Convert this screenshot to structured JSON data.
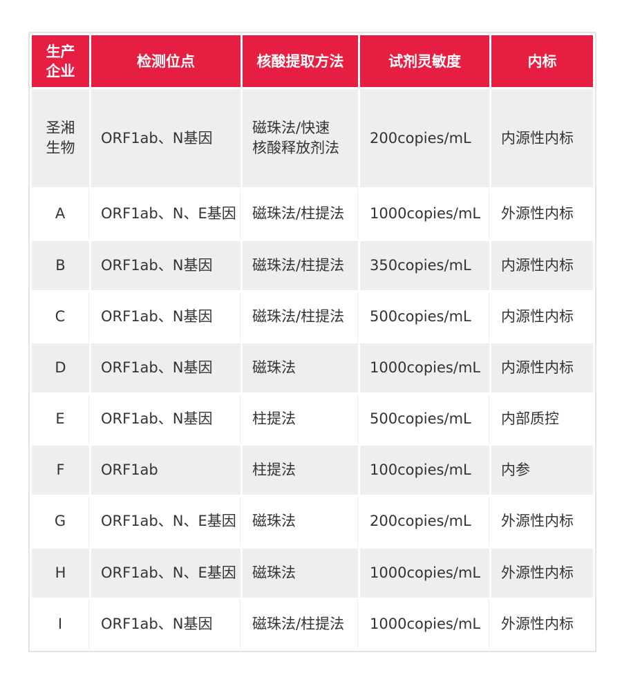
{
  "colors": {
    "header": "#e61e42",
    "stripe": "#eeeeee"
  },
  "headers": [
    "生产\n企业",
    "检测位点",
    "核酸提取方法",
    "试剂灵敏度",
    "内标"
  ],
  "rows": [
    [
      "圣湘\n生物",
      "ORF1ab、N基因",
      "磁珠法/快速\n核酸释放剂法",
      "200copies/mL",
      "内源性内标"
    ],
    [
      "A",
      "ORF1ab、N、E基因",
      "磁珠法/柱提法",
      "1000copies/mL",
      "外源性内标"
    ],
    [
      "B",
      "ORF1ab、N基因",
      "磁珠法/柱提法",
      "350copies/mL",
      "内源性内标"
    ],
    [
      "C",
      "ORF1ab、N基因",
      "磁珠法/柱提法",
      "500copies/mL",
      "内源性内标"
    ],
    [
      "D",
      "ORF1ab、N基因",
      "磁珠法",
      "1000copies/mL",
      "内源性内标"
    ],
    [
      "E",
      "ORF1ab、N基因",
      "柱提法",
      "500copies/mL",
      "内部质控"
    ],
    [
      "F",
      "ORF1ab",
      "柱提法",
      "100copies/mL",
      "内参"
    ],
    [
      "G",
      "ORF1ab、N、E基因",
      "磁珠法",
      "200copies/mL",
      "外源性内标"
    ],
    [
      "H",
      "ORF1ab、N、E基因",
      "磁珠法",
      "1000copies/mL",
      "外源性内标"
    ],
    [
      "I",
      "ORF1ab、N基因",
      "磁珠法/柱提法",
      "1000copies/mL",
      "外源性内标"
    ]
  ]
}
